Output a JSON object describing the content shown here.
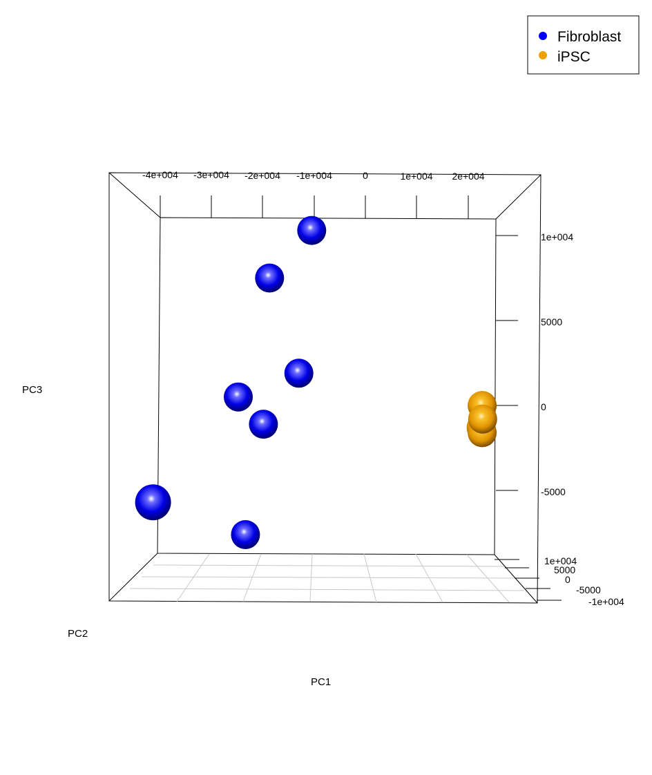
{
  "chart_data": {
    "type": "scatter",
    "projection": "3d",
    "series": [
      {
        "name": "Fibroblast",
        "color": "#0000ff",
        "points": [
          {
            "x": -10500,
            "y": 0,
            "z": 10300
          },
          {
            "x": -18700,
            "y": 0,
            "z": 7500
          },
          {
            "x": -13000,
            "y": 0,
            "z": 1900
          },
          {
            "x": -24800,
            "y": 0,
            "z": 500
          },
          {
            "x": -19900,
            "y": 0,
            "z": -1100
          },
          {
            "x": -41400,
            "y": -10000,
            "z": -5700
          },
          {
            "x": -23400,
            "y": 0,
            "z": -7600
          }
        ]
      },
      {
        "name": "iPSC",
        "color": "#f0a000",
        "points": [
          {
            "x": 22700,
            "y": 0,
            "z": 0
          },
          {
            "x": 22500,
            "y": 0,
            "z": -1300
          },
          {
            "x": 22700,
            "y": 0,
            "z": -1600
          },
          {
            "x": 22800,
            "y": 0,
            "z": -800
          }
        ]
      }
    ],
    "x_ticks": [
      "-4e+004",
      "-3e+004",
      "-2e+004",
      "-1e+004",
      "0",
      "1e+004",
      "2e+004"
    ],
    "z_ticks": [
      "1e+004",
      "5000",
      "0",
      "-5000"
    ],
    "y_ticks": [
      "1e+004",
      "5000",
      "0",
      "-5000",
      "-1e+004"
    ],
    "xlabel": "PC1",
    "ylabel": "PC2",
    "zlabel": "PC3",
    "xlim": [
      -45000,
      26000
    ],
    "zlim": [
      -9500,
      12000
    ],
    "legend": {
      "position": "top-right",
      "entries": [
        {
          "label": "Fibroblast",
          "color": "#0000ff"
        },
        {
          "label": "iPSC",
          "color": "#f0a000"
        }
      ]
    }
  }
}
